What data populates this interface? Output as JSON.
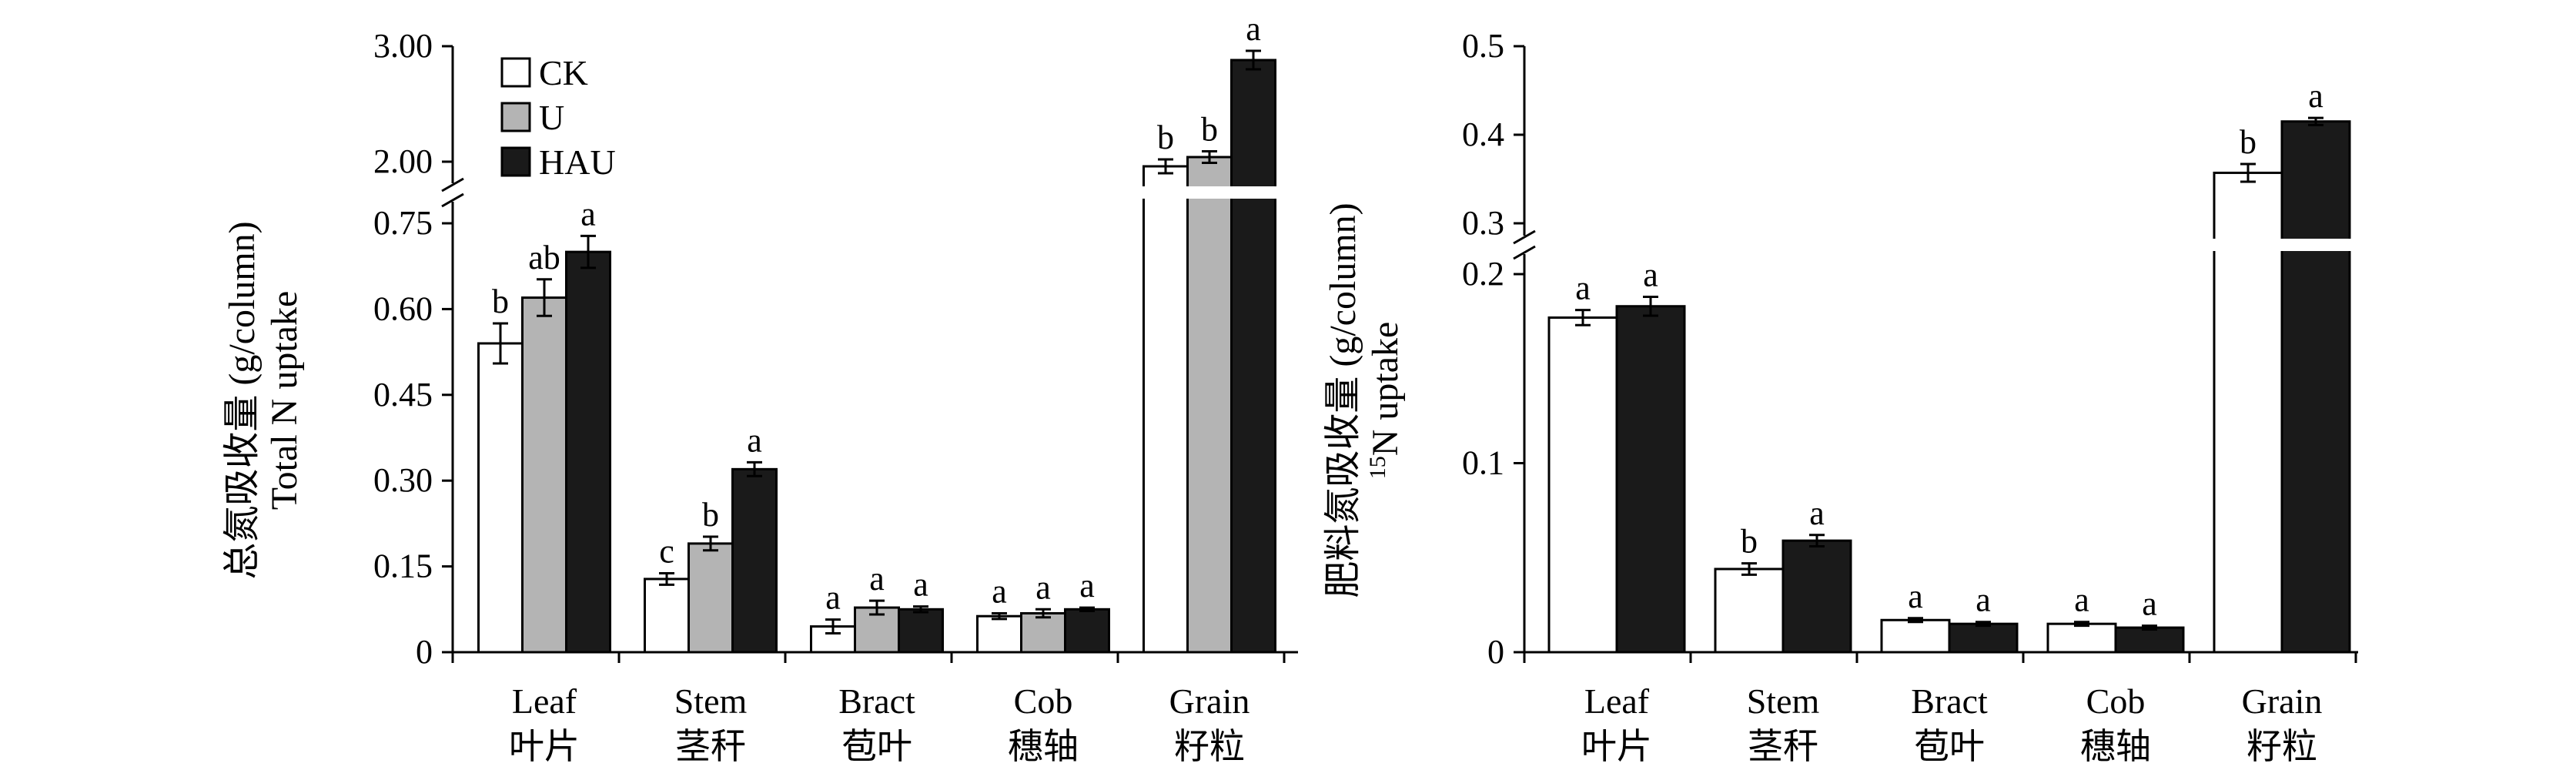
{
  "chart_data": [
    {
      "type": "bar",
      "ylabel": "总氮吸收量 (g/column)",
      "ylabel_en": "Total N uptake",
      "categories": [
        "Leaf",
        "Stem",
        "Bract",
        "Cob",
        "Grain"
      ],
      "categories_cn": [
        "叶片",
        "茎秆",
        "苞叶",
        "穗轴",
        "籽粒"
      ],
      "axis_break": true,
      "ylim_lower": [
        0,
        0.75
      ],
      "ylim_upper": [
        2.0,
        3.0
      ],
      "yticks_lower": [
        "0",
        "0.15",
        "0.30",
        "0.45",
        "0.60",
        "0.75"
      ],
      "yticks_upper": [
        "2.00",
        "3.00"
      ],
      "legend": [
        "CK",
        "U",
        "HAU"
      ],
      "legend_position": "top-left",
      "series": [
        {
          "name": "CK",
          "color": "#ffffff",
          "values": [
            0.54,
            0.128,
            0.045,
            0.063,
            1.96
          ],
          "errors": [
            0.035,
            0.01,
            0.012,
            0.005,
            0.06
          ],
          "letters": [
            "b",
            "c",
            "a",
            "a",
            "b"
          ]
        },
        {
          "name": "U",
          "color": "#b4b4b4",
          "values": [
            0.62,
            0.19,
            0.078,
            0.068,
            2.04
          ],
          "errors": [
            0.032,
            0.012,
            0.012,
            0.007,
            0.05
          ],
          "letters": [
            "ab",
            "b",
            "a",
            "a",
            "b"
          ]
        },
        {
          "name": "HAU",
          "color": "#1a1a1a",
          "values": [
            0.7,
            0.32,
            0.075,
            0.075,
            2.88
          ],
          "errors": [
            0.028,
            0.012,
            0.005,
            0.003,
            0.08
          ],
          "letters": [
            "a",
            "a",
            "a",
            "a",
            "a"
          ]
        }
      ]
    },
    {
      "type": "bar",
      "ylabel": "肥料氮吸收量 (g/column)",
      "ylabel_en": "15N uptake",
      "ylabel_en_sup": "15",
      "ylabel_en_rest": "N uptake",
      "categories": [
        "Leaf",
        "Stem",
        "Bract",
        "Cob",
        "Grain"
      ],
      "categories_cn": [
        "叶片",
        "茎秆",
        "苞叶",
        "穗轴",
        "籽粒"
      ],
      "axis_break": true,
      "ylim_lower": [
        0,
        0.2
      ],
      "ylim_upper": [
        0.3,
        0.5
      ],
      "yticks_lower": [
        "0",
        "0.1",
        "0.2"
      ],
      "yticks_upper": [
        "0.3",
        "0.4",
        "0.5"
      ],
      "series": [
        {
          "name": "U",
          "color": "#ffffff",
          "values": [
            0.177,
            0.044,
            0.017,
            0.015,
            0.357
          ],
          "errors": [
            0.004,
            0.003,
            0.001,
            0.001,
            0.01
          ],
          "letters": [
            "a",
            "b",
            "a",
            "a",
            "b"
          ]
        },
        {
          "name": "HAU",
          "color": "#1a1a1a",
          "values": [
            0.183,
            0.059,
            0.015,
            0.013,
            0.415
          ],
          "errors": [
            0.005,
            0.003,
            0.001,
            0.001,
            0.004
          ],
          "letters": [
            "a",
            "a",
            "a",
            "a",
            "a"
          ]
        }
      ]
    }
  ]
}
